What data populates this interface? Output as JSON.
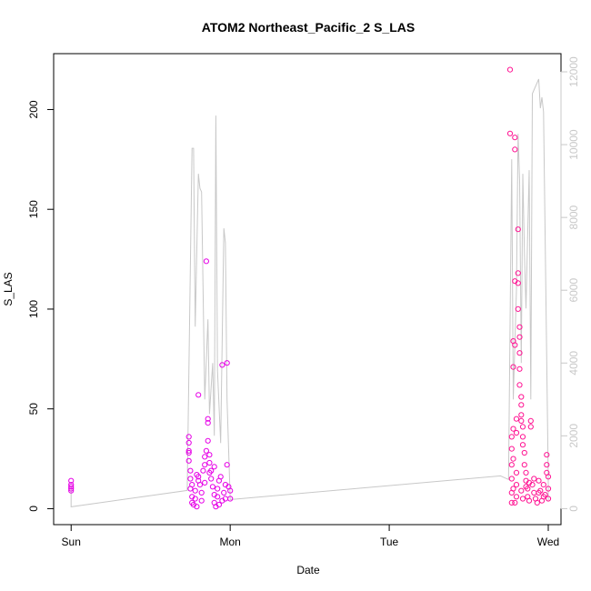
{
  "chart_data": {
    "type": "scatter",
    "title": "ATOM2 Northeast_Pacific_2 S_LAS",
    "xlabel": "Date",
    "ylabel": "S_LAS",
    "x_ticks": [
      {
        "label": "Sun",
        "value": 0
      },
      {
        "label": "Mon",
        "value": 1
      },
      {
        "label": "Tue",
        "value": 2
      },
      {
        "label": "Wed",
        "value": 3
      }
    ],
    "xlim": [
      -0.11,
      3.08
    ],
    "ylim": [
      -8,
      228
    ],
    "y_ticks": [
      0,
      50,
      100,
      150,
      200
    ],
    "y2lim": [
      -440,
      12500
    ],
    "y2_ticks": [
      0,
      2000,
      4000,
      6000,
      8000,
      10000,
      12000
    ],
    "grid": false,
    "colors": {
      "points_early": "#e600e6",
      "points_late": "#ff1493",
      "secondary_line": "#c8c8c8",
      "axis": "#000000",
      "right_axis": "#c8c8c8"
    },
    "series": [
      {
        "kind": "points",
        "color": "#e600e6",
        "points": [
          [
            0.0,
            14
          ],
          [
            0.0,
            12
          ],
          [
            0.0,
            11
          ],
          [
            0.0,
            10
          ],
          [
            0.0,
            9
          ],
          [
            0.74,
            36
          ],
          [
            0.74,
            33
          ],
          [
            0.74,
            29
          ],
          [
            0.74,
            28
          ],
          [
            0.74,
            24
          ],
          [
            0.75,
            19
          ],
          [
            0.75,
            15
          ],
          [
            0.75,
            10
          ],
          [
            0.76,
            6
          ],
          [
            0.76,
            3
          ],
          [
            0.77,
            2
          ],
          [
            0.78,
            9
          ],
          [
            0.78,
            5
          ],
          [
            0.79,
            1
          ],
          [
            0.79,
            17
          ],
          [
            0.8,
            57
          ],
          [
            0.8,
            16
          ],
          [
            0.81,
            12
          ],
          [
            0.82,
            4
          ],
          [
            0.82,
            8
          ],
          [
            0.83,
            19
          ],
          [
            0.84,
            22
          ],
          [
            0.84,
            26
          ],
          [
            0.85,
            124
          ],
          [
            0.85,
            29
          ],
          [
            0.86,
            34
          ],
          [
            0.86,
            45
          ],
          [
            0.86,
            43
          ],
          [
            0.87,
            27
          ],
          [
            0.87,
            23
          ],
          [
            0.88,
            19
          ],
          [
            0.88,
            15
          ],
          [
            0.89,
            11
          ],
          [
            0.9,
            7
          ],
          [
            0.9,
            3
          ],
          [
            0.91,
            1
          ],
          [
            0.92,
            10
          ],
          [
            0.92,
            6
          ],
          [
            0.93,
            2
          ],
          [
            0.94,
            16
          ],
          [
            0.95,
            4
          ],
          [
            0.95,
            72
          ],
          [
            0.96,
            8
          ],
          [
            0.97,
            12
          ],
          [
            0.98,
            73
          ],
          [
            0.98,
            22
          ],
          [
            0.99,
            11
          ],
          [
            1.0,
            9
          ],
          [
            1.0,
            5
          ],
          [
            0.76,
            12
          ],
          [
            0.8,
            14
          ],
          [
            0.84,
            13
          ],
          [
            0.87,
            18
          ],
          [
            0.9,
            21
          ],
          [
            0.93,
            14
          ],
          [
            0.97,
            5
          ]
        ]
      },
      {
        "kind": "points",
        "color": "#ff1493",
        "points": [
          [
            2.76,
            220
          ],
          [
            2.76,
            188
          ],
          [
            2.77,
            36
          ],
          [
            2.77,
            30
          ],
          [
            2.77,
            22
          ],
          [
            2.77,
            15
          ],
          [
            2.77,
            8
          ],
          [
            2.77,
            3
          ],
          [
            2.78,
            71
          ],
          [
            2.78,
            84
          ],
          [
            2.78,
            40
          ],
          [
            2.78,
            25
          ],
          [
            2.79,
            186
          ],
          [
            2.79,
            180
          ],
          [
            2.79,
            114
          ],
          [
            2.79,
            82
          ],
          [
            2.8,
            45
          ],
          [
            2.8,
            38
          ],
          [
            2.8,
            18
          ],
          [
            2.8,
            6
          ],
          [
            2.81,
            140
          ],
          [
            2.81,
            118
          ],
          [
            2.81,
            113
          ],
          [
            2.81,
            100
          ],
          [
            2.82,
            91
          ],
          [
            2.82,
            86
          ],
          [
            2.82,
            78
          ],
          [
            2.82,
            70
          ],
          [
            2.82,
            62
          ],
          [
            2.83,
            56
          ],
          [
            2.83,
            52
          ],
          [
            2.83,
            47
          ],
          [
            2.83,
            44
          ],
          [
            2.84,
            41
          ],
          [
            2.84,
            36
          ],
          [
            2.84,
            32
          ],
          [
            2.85,
            28
          ],
          [
            2.85,
            22
          ],
          [
            2.86,
            18
          ],
          [
            2.86,
            14
          ],
          [
            2.87,
            10
          ],
          [
            2.87,
            6
          ],
          [
            2.88,
            4
          ],
          [
            2.89,
            44
          ],
          [
            2.89,
            41
          ],
          [
            2.9,
            12
          ],
          [
            2.91,
            8
          ],
          [
            2.92,
            5
          ],
          [
            2.93,
            3
          ],
          [
            2.94,
            14
          ],
          [
            2.95,
            9
          ],
          [
            2.96,
            4
          ],
          [
            2.97,
            12
          ],
          [
            2.98,
            7
          ],
          [
            2.99,
            27
          ],
          [
            2.99,
            22
          ],
          [
            2.99,
            18
          ],
          [
            3.0,
            16
          ],
          [
            3.0,
            10
          ],
          [
            3.0,
            5
          ],
          [
            2.78,
            10
          ],
          [
            2.8,
            12
          ],
          [
            2.83,
            9
          ],
          [
            2.86,
            11
          ],
          [
            2.88,
            13
          ],
          [
            2.91,
            15
          ],
          [
            2.94,
            8
          ],
          [
            2.97,
            6
          ],
          [
            2.79,
            3
          ],
          [
            2.84,
            5
          ]
        ]
      },
      {
        "kind": "line",
        "color": "#c8c8c8",
        "axis": "right",
        "points": [
          [
            0.0,
            600
          ],
          [
            0.0,
            50
          ],
          [
            0.73,
            500
          ],
          [
            0.76,
            9900
          ],
          [
            0.77,
            9900
          ],
          [
            0.78,
            5000
          ],
          [
            0.8,
            9200
          ],
          [
            0.81,
            8800
          ],
          [
            0.82,
            8700
          ],
          [
            0.84,
            3000
          ],
          [
            0.86,
            5200
          ],
          [
            0.87,
            2600
          ],
          [
            0.89,
            4000
          ],
          [
            0.9,
            2000
          ],
          [
            0.91,
            10800
          ],
          [
            0.92,
            3800
          ],
          [
            0.94,
            1800
          ],
          [
            0.96,
            7700
          ],
          [
            0.97,
            7300
          ],
          [
            0.98,
            3000
          ],
          [
            1.0,
            250
          ],
          [
            2.7,
            900
          ],
          [
            2.75,
            800
          ],
          [
            2.77,
            9600
          ],
          [
            2.78,
            3000
          ],
          [
            2.8,
            6000
          ],
          [
            2.81,
            10300
          ],
          [
            2.82,
            9000
          ],
          [
            2.83,
            4000
          ],
          [
            2.84,
            9200
          ],
          [
            2.85,
            7000
          ],
          [
            2.86,
            5500
          ],
          [
            2.88,
            9300
          ],
          [
            2.89,
            3000
          ],
          [
            2.9,
            11400
          ],
          [
            2.94,
            11800
          ],
          [
            2.95,
            11000
          ],
          [
            2.96,
            11300
          ],
          [
            2.97,
            10900
          ],
          [
            3.0,
            800
          ],
          [
            3.0,
            200
          ]
        ]
      }
    ]
  }
}
